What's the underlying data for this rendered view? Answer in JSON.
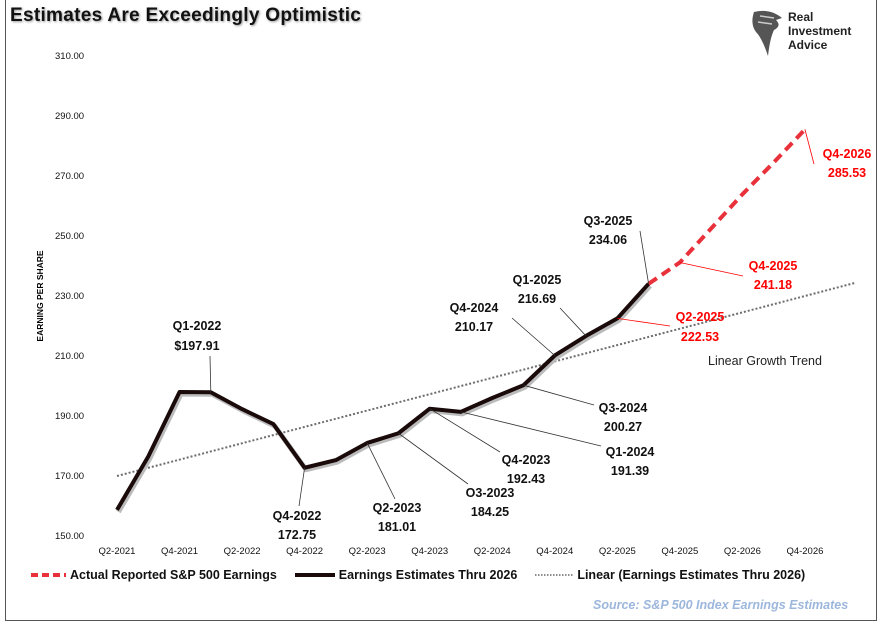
{
  "title": "Estimates Are Exceedingly Optimistic",
  "logo": {
    "lines": [
      "Real",
      "Investment",
      "Advice"
    ]
  },
  "source": "Source: S&P 500 Index Earnings Estimates",
  "chart_data": {
    "type": "line",
    "title": "Estimates Are Exceedingly Optimistic",
    "ylabel": "EARNING PER SHARE",
    "xlabel": "",
    "ylim": [
      150,
      310
    ],
    "yticks": [
      "150.00",
      "170.00",
      "190.00",
      "210.00",
      "230.00",
      "250.00",
      "270.00",
      "290.00",
      "310.00"
    ],
    "x": [
      "Q2-2021",
      "Q3-2021",
      "Q4-2021",
      "Q1-2022",
      "Q2-2022",
      "Q3-2022",
      "Q4-2022",
      "Q1-2023",
      "Q2-2023",
      "Q3-2023",
      "Q4-2023",
      "Q1-2024",
      "Q2-2024",
      "Q3-2024",
      "Q4-2024",
      "Q1-2025",
      "Q2-2025",
      "Q3-2025",
      "Q4-2025",
      "Q1-2026",
      "Q2-2026",
      "Q3-2026",
      "Q4-2026"
    ],
    "xtick_labels": [
      "Q2-2021",
      "Q4-2021",
      "Q2-2022",
      "Q4-2022",
      "Q2-2023",
      "Q4-2023",
      "Q2-2024",
      "Q4-2024",
      "Q2-2025",
      "Q4-2025",
      "Q2-2026",
      "Q4-2026"
    ],
    "grid": false,
    "legend": "bottom",
    "series": [
      {
        "name": "Actual Reported S&P 500 Earnings",
        "color": "#e8313a",
        "style": "dashed",
        "x": [
          "Q3-2025",
          "Q4-2025",
          "Q1-2026",
          "Q2-2026",
          "Q3-2026",
          "Q4-2026"
        ],
        "values": [
          234.06,
          241.18,
          252.5,
          263.9,
          274.5,
          285.53
        ]
      },
      {
        "name": "Earnings Estimates Thru 2026",
        "color": "#1a0a0a",
        "style": "solid",
        "x": [
          "Q2-2021",
          "Q3-2021",
          "Q4-2021",
          "Q1-2022",
          "Q2-2022",
          "Q3-2022",
          "Q4-2022",
          "Q1-2023",
          "Q2-2023",
          "Q3-2023",
          "Q4-2023",
          "Q1-2024",
          "Q2-2024",
          "Q3-2024",
          "Q4-2024",
          "Q1-2025",
          "Q2-2025",
          "Q3-2025"
        ],
        "values": [
          158.7,
          176.5,
          198.0,
          197.91,
          192.3,
          187.3,
          172.75,
          175.3,
          181.01,
          184.25,
          192.43,
          191.39,
          196.0,
          200.27,
          210.17,
          216.69,
          222.53,
          234.06
        ]
      },
      {
        "name": "Linear (Earnings Estimates Thru 2026)",
        "color": "#999999",
        "style": "dotted",
        "x": [
          "Q2-2021",
          "Q4-2026"
        ],
        "values": [
          170.0,
          230.0
        ]
      }
    ],
    "annotations": [
      {
        "x": "Q1-2022",
        "label": "Q1-2022",
        "value": "$197.91",
        "color": "#111"
      },
      {
        "x": "Q4-2022",
        "label": "Q4-2022",
        "value": "172.75",
        "color": "#111"
      },
      {
        "x": "Q2-2023",
        "label": "Q2-2023",
        "value": "181.01",
        "color": "#111"
      },
      {
        "x": "Q3-2023",
        "label": "O3-2023",
        "value": "184.25",
        "color": "#111"
      },
      {
        "x": "Q4-2023",
        "label": "Q4-2023",
        "value": "192.43",
        "color": "#111"
      },
      {
        "x": "Q1-2024",
        "label": "Q1-2024",
        "value": "191.39",
        "color": "#111"
      },
      {
        "x": "Q3-2024",
        "label": "Q3-2024",
        "value": "200.27",
        "color": "#111"
      },
      {
        "x": "Q4-2024",
        "label": "Q4-2024",
        "value": "210.17",
        "color": "#111"
      },
      {
        "x": "Q1-2025",
        "label": "Q1-2025",
        "value": "216.69",
        "color": "#111"
      },
      {
        "x": "Q3-2025",
        "label": "Q3-2025",
        "value": "234.06",
        "color": "#111"
      },
      {
        "x": "Q2-2025",
        "label": "Q2-2025",
        "value": "222.53",
        "color": "#ff0000"
      },
      {
        "x": "Q4-2025",
        "label": "Q4-2025",
        "value": "241.18",
        "color": "#ff0000"
      },
      {
        "x": "Q4-2026",
        "label": "Q4-2026",
        "value": "285.53",
        "color": "#ff0000"
      }
    ],
    "trend_label": "Linear Growth Trend"
  }
}
